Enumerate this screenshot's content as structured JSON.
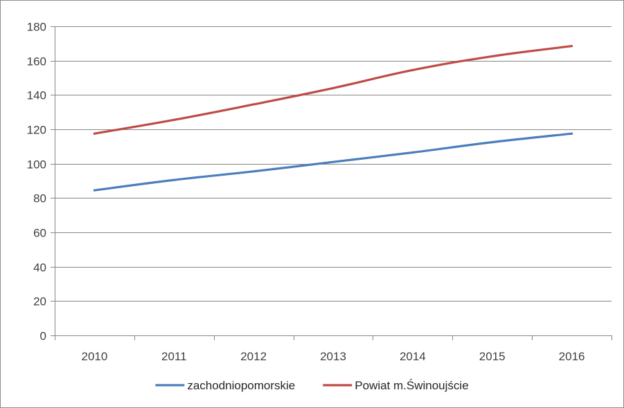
{
  "chart_data": {
    "type": "line",
    "title": "",
    "xlabel": "",
    "ylabel": "",
    "categories": [
      "2010",
      "2011",
      "2012",
      "2013",
      "2014",
      "2015",
      "2016"
    ],
    "ylim": [
      0,
      180
    ],
    "yticks": [
      0,
      20,
      40,
      60,
      80,
      100,
      120,
      140,
      160,
      180
    ],
    "grid": true,
    "legend_position": "bottom",
    "series": [
      {
        "name": "zachodniopomorskie",
        "color": "#4a7ebb",
        "values": [
          84.5,
          90.5,
          95.5,
          101,
          106.5,
          112.5,
          117.5
        ]
      },
      {
        "name": "Powiat m.Świnoujście",
        "color": "#be4b48",
        "values": [
          117.5,
          125.5,
          134.5,
          144,
          154.5,
          162.5,
          168.5
        ]
      }
    ]
  }
}
